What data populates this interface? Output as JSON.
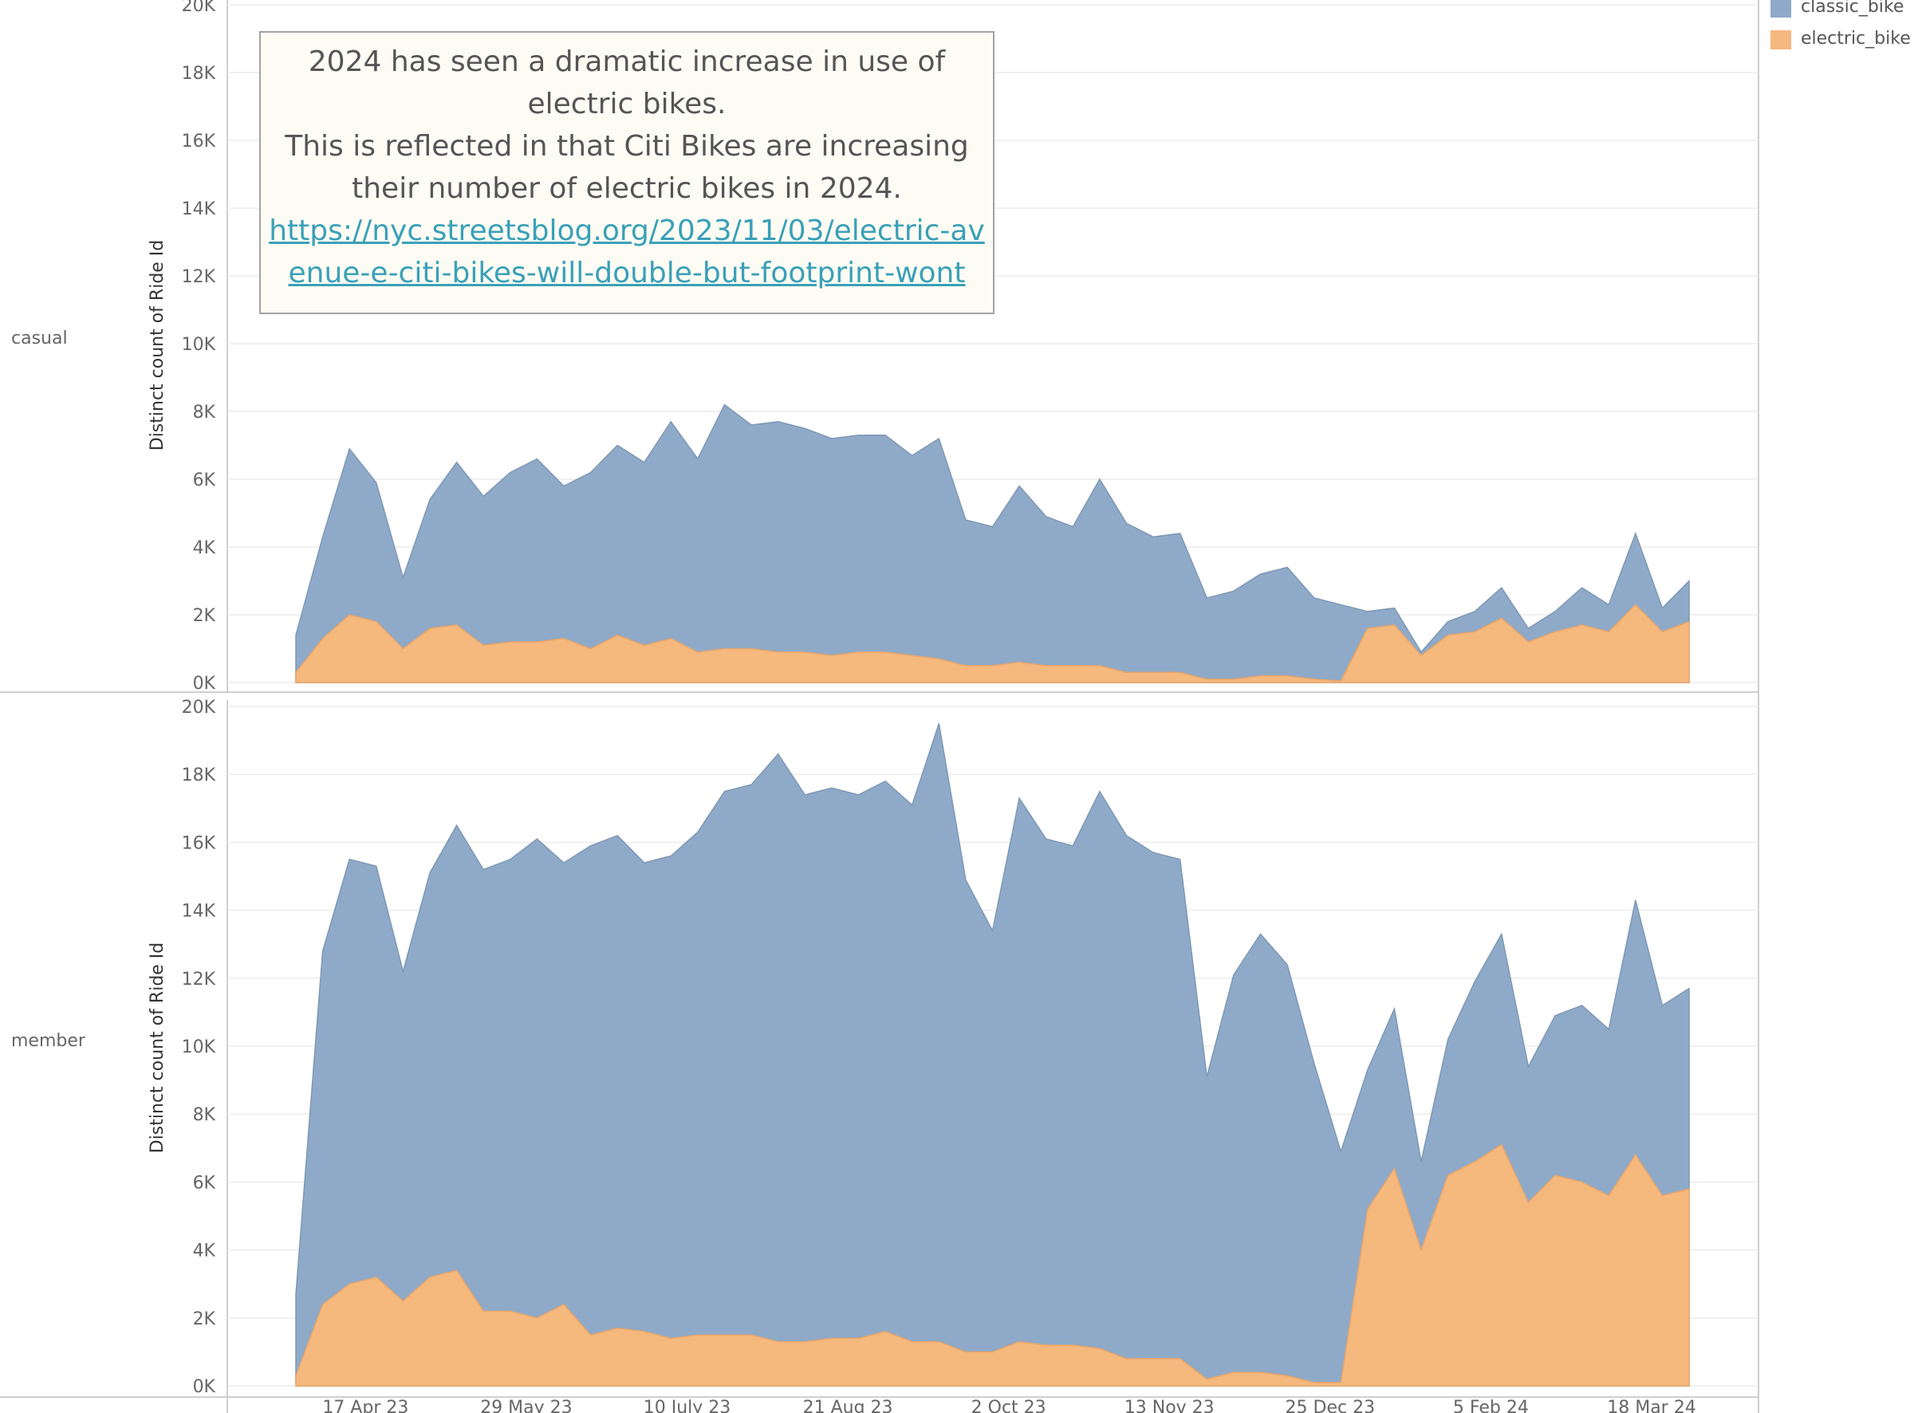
{
  "annotation": {
    "line1": "2024 has seen a dramatic increase in use of electric bikes.",
    "line2": "This is reflected in that Citi Bikes are increasing their number of electric bikes in 2024.",
    "link": "https://nyc.streetsblog.org/2023/11/03/electric-avenue-e-citi-bikes-will-double-but-footprint-wont"
  },
  "legend": [
    {
      "label": "classic_bike",
      "color": "#8eaac8"
    },
    {
      "label": "electric_bike",
      "color": "#f5b87d"
    }
  ],
  "chart_data": {
    "type": "area",
    "stacked": true,
    "ylabel": "Distinct count of Ride Id",
    "ylim": [
      0,
      20000
    ],
    "y_ticks": [
      "0K",
      "2K",
      "4K",
      "6K",
      "8K",
      "10K",
      "12K",
      "14K",
      "16K",
      "18K",
      "20K"
    ],
    "x_tick_labels": [
      "17 Apr 23",
      "29 May 23",
      "10 July 23",
      "21 Aug 23",
      "2 Oct 23",
      "13 Nov 23",
      "25 Dec 23",
      "5 Feb 24",
      "18 Mar 24"
    ],
    "x_first_week": "30 Mar 23",
    "x_week_count": 53,
    "panels": [
      {
        "label": "casual",
        "series": [
          {
            "name": "classic_bike",
            "totals": [
              1400,
              4300,
              6900,
              5900,
              3100,
              5400,
              6500,
              5500,
              6200,
              6600,
              5800,
              6200,
              7000,
              6500,
              7700,
              6600,
              8200,
              7600,
              7700,
              7500,
              7200,
              7300,
              7300,
              6700,
              7200,
              4800,
              4600,
              5800,
              4900,
              4600,
              6000,
              4700,
              4300,
              4400,
              2500,
              2700,
              3200,
              3400,
              2500,
              2300,
              2100,
              2200,
              900,
              1800,
              2100,
              2800,
              1600,
              2100,
              2800,
              2300,
              4400,
              2200,
              3000
            ]
          },
          {
            "name": "electric_bike",
            "values": [
              300,
              1300,
              2000,
              1800,
              1000,
              1600,
              1700,
              1100,
              1200,
              1200,
              1300,
              1000,
              1400,
              1100,
              1300,
              900,
              1000,
              1000,
              900,
              900,
              800,
              900,
              900,
              800,
              700,
              500,
              500,
              600,
              500,
              500,
              500,
              300,
              300,
              300,
              100,
              100,
              200,
              200,
              100,
              50,
              1600,
              1700,
              800,
              1400,
              1500,
              1900,
              1200,
              1500,
              1700,
              1500,
              2300,
              1500,
              1800
            ]
          }
        ]
      },
      {
        "label": "member",
        "series": [
          {
            "name": "classic_bike",
            "totals": [
              2700,
              12800,
              15500,
              15300,
              12200,
              15100,
              16500,
              15200,
              15500,
              16100,
              15400,
              15900,
              16200,
              15400,
              15600,
              16300,
              17500,
              17700,
              18600,
              17400,
              17600,
              17400,
              17800,
              17100,
              19500,
              14900,
              13400,
              17300,
              16100,
              15900,
              17500,
              16200,
              15700,
              15500,
              9100,
              12100,
              13300,
              12400,
              9500,
              6900,
              9300,
              11100,
              6600,
              10200,
              11900,
              13300,
              9400,
              10900,
              11200,
              10500,
              14300,
              11200,
              11700
            ]
          },
          {
            "name": "electric_bike",
            "values": [
              300,
              2400,
              3000,
              3200,
              2500,
              3200,
              3400,
              2200,
              2200,
              2000,
              2400,
              1500,
              1700,
              1600,
              1400,
              1500,
              1500,
              1500,
              1300,
              1300,
              1400,
              1400,
              1600,
              1300,
              1300,
              1000,
              1000,
              1300,
              1200,
              1200,
              1100,
              800,
              800,
              800,
              200,
              400,
              400,
              300,
              100,
              100,
              5200,
              6400,
              4000,
              6200,
              6600,
              7100,
              5400,
              6200,
              6000,
              5600,
              6800,
              5600,
              5800
            ]
          }
        ]
      }
    ]
  },
  "colors": {
    "classic_bike": "#8eaac8",
    "electric_bike": "#f5b87d",
    "classic_stroke": "#7f98b4",
    "electric_stroke": "#e8a56a",
    "grid": "#ececec",
    "axis": "#cfcfcf"
  }
}
